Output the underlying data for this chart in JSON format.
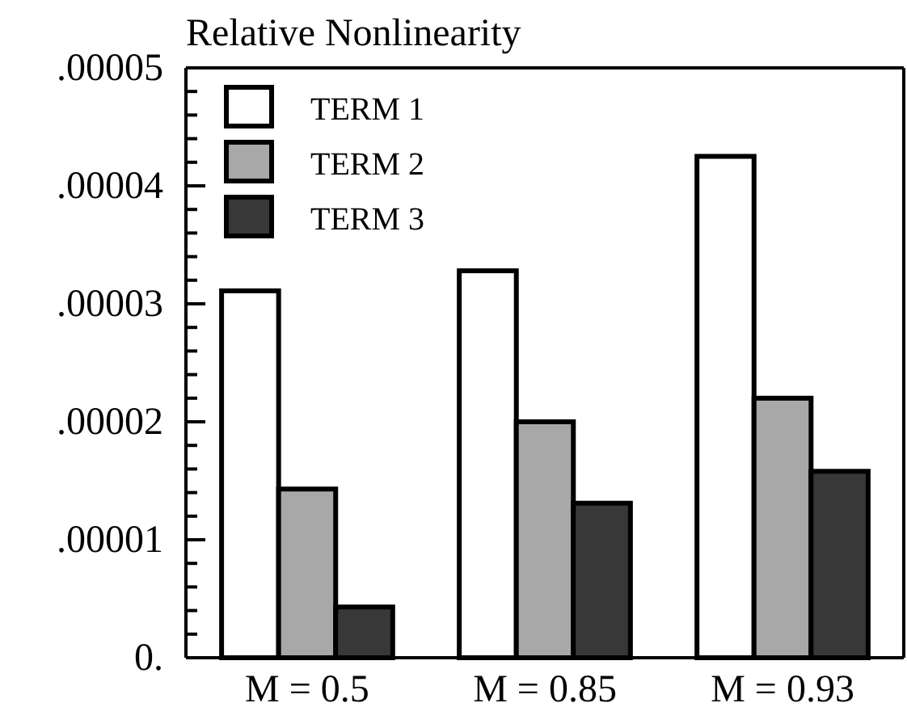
{
  "chart_data": {
    "type": "bar",
    "title": "Relative Nonlinearity",
    "categories": [
      "M = 0.5",
      "M = 0.85",
      "M = 0.93"
    ],
    "series": [
      {
        "name": "TERM 1",
        "color": "#ffffff",
        "values": [
          3.11e-05,
          3.28e-05,
          4.25e-05
        ]
      },
      {
        "name": "TERM 2",
        "color": "#a8a8a8",
        "values": [
          1.43e-05,
          2e-05,
          2.2e-05
        ]
      },
      {
        "name": "TERM 3",
        "color": "#383838",
        "values": [
          4.3e-06,
          1.31e-05,
          1.58e-05
        ]
      }
    ],
    "ylim": [
      0,
      5e-05
    ],
    "yticks": [
      {
        "value": 0,
        "label": "0."
      },
      {
        "value": 2e-06,
        "label": null
      },
      {
        "value": 4e-06,
        "label": null
      },
      {
        "value": 6e-06,
        "label": null
      },
      {
        "value": 8e-06,
        "label": null
      },
      {
        "value": 1e-05,
        "label": ".00001"
      },
      {
        "value": 1.2e-05,
        "label": null
      },
      {
        "value": 1.4e-05,
        "label": null
      },
      {
        "value": 1.6e-05,
        "label": null
      },
      {
        "value": 1.8e-05,
        "label": null
      },
      {
        "value": 2e-05,
        "label": ".00002"
      },
      {
        "value": 2.2e-05,
        "label": null
      },
      {
        "value": 2.4e-05,
        "label": null
      },
      {
        "value": 2.6e-05,
        "label": null
      },
      {
        "value": 2.8e-05,
        "label": null
      },
      {
        "value": 3e-05,
        "label": ".00003"
      },
      {
        "value": 3.2e-05,
        "label": null
      },
      {
        "value": 3.4e-05,
        "label": null
      },
      {
        "value": 3.6e-05,
        "label": null
      },
      {
        "value": 3.8e-05,
        "label": null
      },
      {
        "value": 4e-05,
        "label": ".00004"
      },
      {
        "value": 4.2e-05,
        "label": null
      },
      {
        "value": 4.4e-05,
        "label": null
      },
      {
        "value": 4.6e-05,
        "label": null
      },
      {
        "value": 4.8e-05,
        "label": null
      },
      {
        "value": 5e-05,
        "label": ".00005"
      }
    ],
    "legend": "top left",
    "grid": false
  }
}
